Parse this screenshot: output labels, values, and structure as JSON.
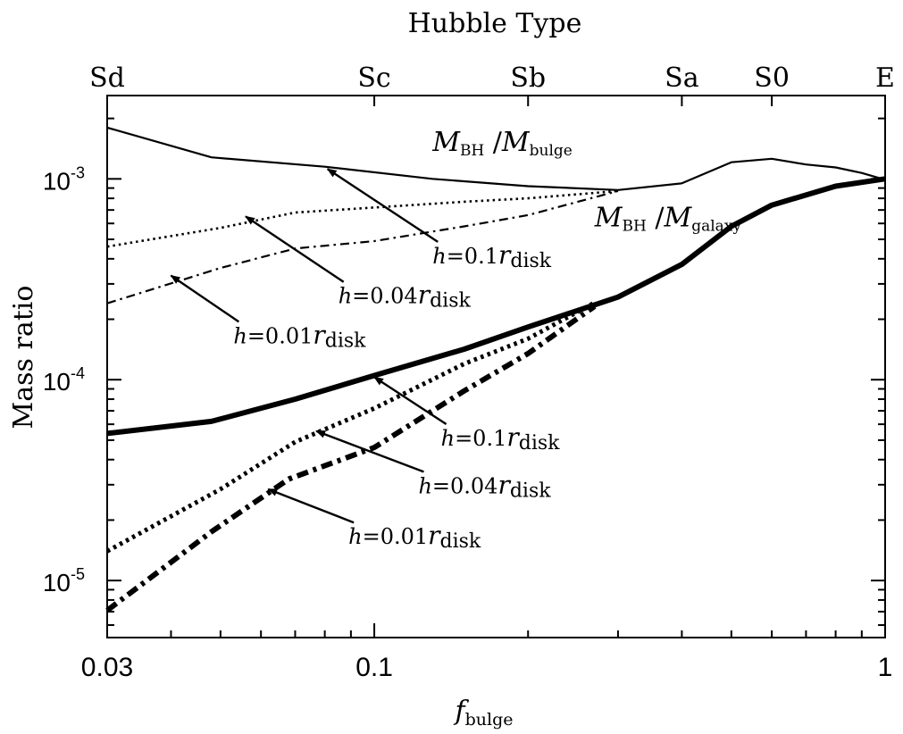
{
  "chart_data": {
    "type": "line",
    "top_axis_title": "Hubble Type",
    "top_ticks": [
      {
        "label": "Sd",
        "x": 0.03
      },
      {
        "label": "Sc",
        "x": 0.1
      },
      {
        "label": "Sb",
        "x": 0.2
      },
      {
        "label": "Sa",
        "x": 0.4
      },
      {
        "label": "S0",
        "x": 0.6
      },
      {
        "label": "E",
        "x": 1.0
      }
    ],
    "xlabel": {
      "base": "f",
      "sub": "bulge"
    },
    "ylabel": "Mass ratio",
    "x_scale": "log",
    "y_scale": "log",
    "xlim": [
      0.03,
      1.0
    ],
    "ylim": [
      5.2e-06,
      0.0026
    ],
    "x_ticks": [
      {
        "label": "0.03",
        "value": 0.03
      },
      {
        "label": "0.1",
        "value": 0.1
      },
      {
        "label": "1",
        "value": 1.0
      }
    ],
    "y_ticks": [
      {
        "base": "10",
        "exp": "-5",
        "value": 1e-05
      },
      {
        "base": "10",
        "exp": "-4",
        "value": 0.0001
      },
      {
        "base": "10",
        "exp": "-3",
        "value": 0.001
      }
    ],
    "grid": false,
    "series": [
      {
        "id": "bulge-h010",
        "group": "bulge",
        "style": "solid-thin",
        "x": [
          0.03,
          0.048,
          0.08,
          0.13,
          0.2,
          0.3,
          0.4,
          0.5,
          0.6,
          0.7,
          0.8,
          0.9,
          1.0
        ],
        "y": [
          0.0018,
          0.00128,
          0.00115,
          0.001,
          0.00092,
          0.00088,
          0.00095,
          0.00121,
          0.00126,
          0.00118,
          0.00114,
          0.00107,
          0.00099
        ]
      },
      {
        "id": "bulge-h004",
        "group": "bulge",
        "style": "dotted-thin",
        "x": [
          0.03,
          0.05,
          0.07,
          0.1,
          0.15,
          0.2,
          0.3
        ],
        "y": [
          0.00046,
          0.00057,
          0.00068,
          0.00072,
          0.00077,
          0.0008,
          0.00087
        ]
      },
      {
        "id": "bulge-h001",
        "group": "bulge",
        "style": "dashdot-thin",
        "x": [
          0.03,
          0.05,
          0.07,
          0.1,
          0.15,
          0.2,
          0.3
        ],
        "y": [
          0.00024,
          0.00036,
          0.00045,
          0.00049,
          0.00058,
          0.00066,
          0.00087
        ]
      },
      {
        "id": "galaxy-h010",
        "group": "galaxy",
        "style": "solid-thick",
        "x": [
          0.03,
          0.048,
          0.07,
          0.1,
          0.15,
          0.2,
          0.3,
          0.4,
          0.5,
          0.6,
          0.8,
          1.0
        ],
        "y": [
          5.4e-05,
          6.2e-05,
          8e-05,
          0.000105,
          0.000142,
          0.000183,
          0.000258,
          0.000375,
          0.00058,
          0.00074,
          0.00092,
          0.001
        ]
      },
      {
        "id": "galaxy-h004",
        "group": "galaxy",
        "style": "dotted-thick",
        "x": [
          0.03,
          0.05,
          0.07,
          0.1,
          0.15,
          0.2,
          0.27
        ],
        "y": [
          1.4e-05,
          2.85e-05,
          4.9e-05,
          7.2e-05,
          0.00012,
          0.00016,
          0.000242
        ]
      },
      {
        "id": "galaxy-h001",
        "group": "galaxy",
        "style": "dashdot-thick",
        "x": [
          0.03,
          0.048,
          0.068,
          0.1,
          0.15,
          0.2,
          0.27
        ],
        "y": [
          7.1e-06,
          1.75e-05,
          3.2e-05,
          4.6e-05,
          8.8e-05,
          0.000135,
          0.000232
        ]
      }
    ],
    "curve_labels": [
      {
        "id": "label-bulge",
        "base": "M",
        "sub": "BH",
        "sep": "/",
        "base2": "M",
        "sub2": "bulge",
        "x": 0.13,
        "y": 0.00138
      },
      {
        "id": "label-galaxy",
        "base": "M",
        "sub": "BH",
        "sep": "/",
        "base2": "M",
        "sub2": "galaxy",
        "x": 0.27,
        "y": 0.00058
      }
    ],
    "annotations": [
      {
        "id": "bulge-h010",
        "pre": "h",
        "eq": "=0.1",
        "r": "r",
        "sub": "disk",
        "text_at": [
          0.13,
          0.00038
        ],
        "arrow_tip": [
          0.081,
          0.00112
        ]
      },
      {
        "id": "bulge-h004",
        "pre": "h",
        "eq": "=0.04",
        "r": "r",
        "sub": "disk",
        "text_at": [
          0.085,
          0.00024
        ],
        "arrow_tip": [
          0.056,
          0.00065
        ]
      },
      {
        "id": "bulge-h001",
        "pre": "h",
        "eq": "=0.01",
        "r": "r",
        "sub": "disk",
        "text_at": [
          0.053,
          0.000152
        ],
        "arrow_tip": [
          0.04,
          0.00033
        ]
      },
      {
        "id": "galaxy-h010",
        "pre": "h",
        "eq": "=0.1",
        "r": "r",
        "sub": "disk",
        "text_at": [
          0.135,
          4.7e-05
        ],
        "arrow_tip": [
          0.1,
          0.000103
        ]
      },
      {
        "id": "galaxy-h004",
        "pre": "h",
        "eq": "=0.04",
        "r": "r",
        "sub": "disk",
        "text_at": [
          0.122,
          2.72e-05
        ],
        "arrow_tip": [
          0.077,
          5.55e-05
        ]
      },
      {
        "id": "galaxy-h001",
        "pre": "h",
        "eq": "=0.01",
        "r": "r",
        "sub": "disk",
        "text_at": [
          0.089,
          1.52e-05
        ],
        "arrow_tip": [
          0.062,
          2.85e-05
        ]
      }
    ]
  }
}
